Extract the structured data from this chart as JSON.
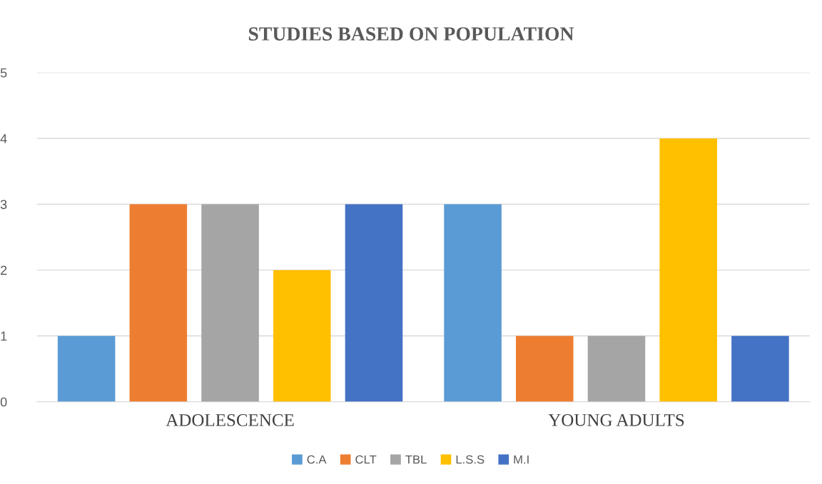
{
  "chart_data": {
    "type": "bar",
    "title": "STUDIES BASED ON POPULATION",
    "categories": [
      "ADOLESCENCE",
      "YOUNG ADULTS"
    ],
    "series": [
      {
        "name": "C.A",
        "color": "#5b9bd5",
        "values": [
          1,
          3
        ]
      },
      {
        "name": "CLT",
        "color": "#ed7d31",
        "values": [
          3,
          1
        ]
      },
      {
        "name": "TBL",
        "color": "#a5a5a5",
        "values": [
          3,
          1
        ]
      },
      {
        "name": "L.S.S",
        "color": "#ffc000",
        "values": [
          2,
          4
        ]
      },
      {
        "name": "M.I",
        "color": "#4472c4",
        "values": [
          3,
          1
        ]
      }
    ],
    "ylim": [
      0,
      5
    ],
    "yticks": [
      0,
      1,
      2,
      3,
      4,
      5
    ],
    "grid": "y",
    "legend": "bottom"
  }
}
